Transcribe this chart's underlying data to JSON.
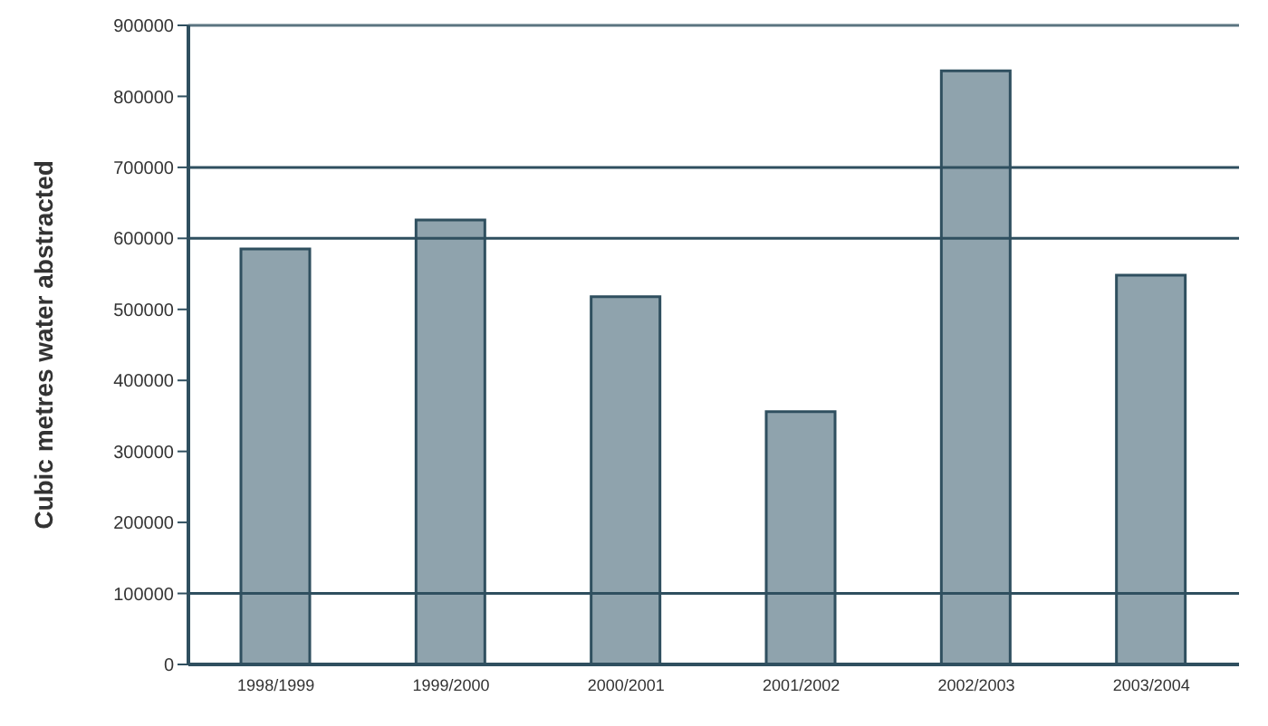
{
  "chart_data": {
    "type": "bar",
    "ylabel": "Cubic metres water abstracted",
    "categories": [
      "1998/1999",
      "1999/2000",
      "2000/2001",
      "2001/2002",
      "2002/2003",
      "2003/2004"
    ],
    "values": [
      585000,
      626000,
      518000,
      356000,
      836000,
      548000
    ],
    "color": "#8fa3ad",
    "ylim": [
      0,
      900000
    ],
    "yticks": [
      0,
      100000,
      200000,
      300000,
      400000,
      500000,
      600000,
      700000,
      800000,
      900000
    ],
    "ref_lines": [
      {
        "axis": "y",
        "value": 700000
      },
      {
        "axis": "y",
        "value": 600000
      },
      {
        "axis": "y",
        "value": 100000
      }
    ]
  }
}
